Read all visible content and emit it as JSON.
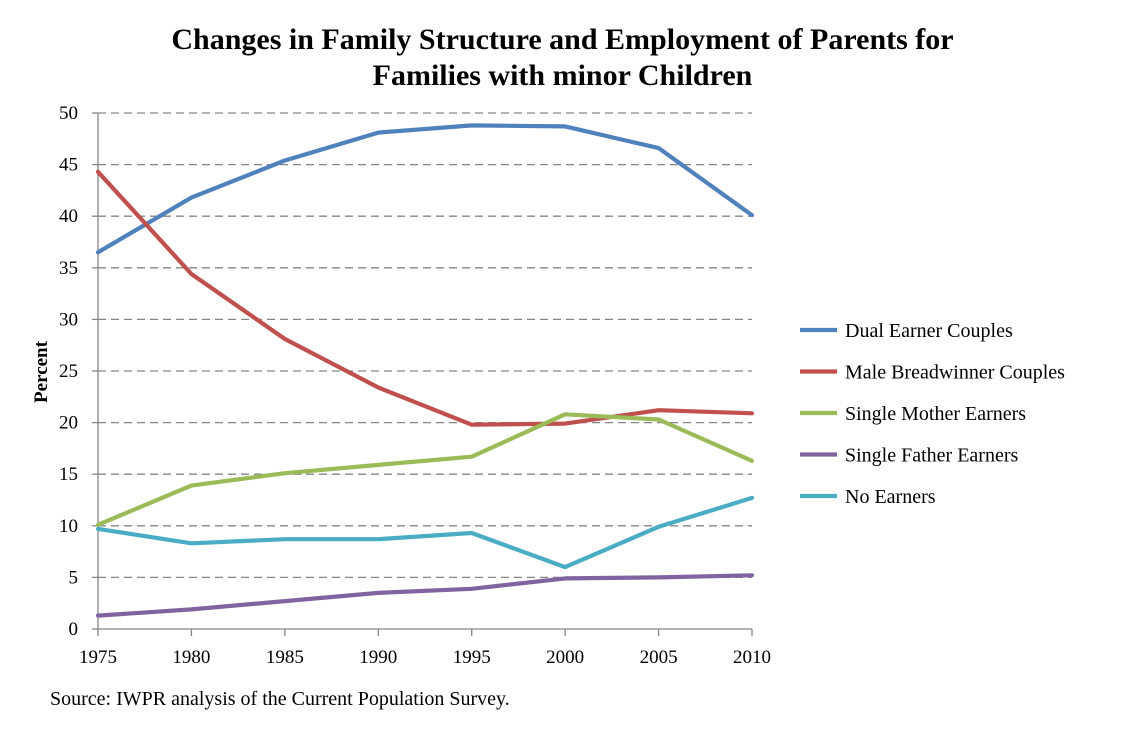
{
  "chart_data": {
    "type": "line",
    "title_lines": [
      "Changes in Family Structure and Employment of Parents for",
      "Families with minor Children"
    ],
    "xlabel": "",
    "ylabel": "Percent",
    "x": [
      1975,
      1980,
      1985,
      1990,
      1995,
      2000,
      2005,
      2010
    ],
    "ylim": [
      0,
      50
    ],
    "ytick_step": 5,
    "grid": "horizontal dashed",
    "legend_position": "right",
    "series": [
      {
        "name": "Dual Earner Couples",
        "color": "#4F81BD",
        "values": [
          36.5,
          41.8,
          45.4,
          48.1,
          48.8,
          48.7,
          46.6,
          40.1
        ]
      },
      {
        "name": "Male Breadwinner Couples",
        "color": "#C0504D",
        "values": [
          44.3,
          34.4,
          28.1,
          23.4,
          19.8,
          19.9,
          21.2,
          20.9
        ]
      },
      {
        "name": "Single Mother Earners",
        "color": "#9BBB59",
        "values": [
          10.1,
          13.9,
          15.1,
          15.9,
          16.7,
          20.8,
          20.3,
          16.3
        ]
      },
      {
        "name": "Single Father Earners",
        "color": "#8064A2",
        "values": [
          1.3,
          1.9,
          2.7,
          3.5,
          3.9,
          4.9,
          5.0,
          5.2
        ]
      },
      {
        "name": "No Earners",
        "color": "#4BACC6",
        "values": [
          9.7,
          8.3,
          8.7,
          8.7,
          9.3,
          6.0,
          9.9,
          12.7
        ]
      }
    ],
    "source": "Source: IWPR analysis of the Current Population Survey."
  }
}
